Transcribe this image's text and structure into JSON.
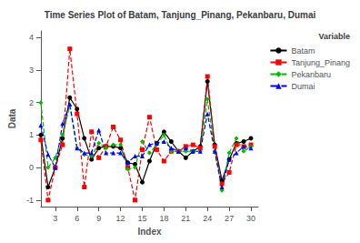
{
  "chart_data": {
    "type": "line",
    "title": "Time Series Plot of Batam, Tanjung_Pinang, Pekanbaru, Dumai",
    "xlabel": "Index",
    "ylabel": "Data",
    "legend_title": "Variable",
    "legend": "upper right",
    "grid": false,
    "x": [
      1,
      2,
      3,
      4,
      5,
      6,
      7,
      8,
      9,
      10,
      11,
      12,
      13,
      14,
      15,
      16,
      17,
      18,
      19,
      20,
      21,
      22,
      23,
      24,
      25,
      26,
      27,
      28,
      29,
      30
    ],
    "xlim": [
      1,
      31
    ],
    "xticks": [
      3,
      6,
      9,
      12,
      15,
      18,
      21,
      24,
      27,
      30
    ],
    "ylim": [
      -1.2,
      4.2
    ],
    "yticks": [
      -1,
      0,
      1,
      2,
      3,
      4
    ],
    "series": [
      {
        "name": "Batam",
        "color": "#000000",
        "marker": "circle",
        "line_style": "solid",
        "values": [
          1.0,
          -0.6,
          0.0,
          0.9,
          2.15,
          1.8,
          0.9,
          0.25,
          0.6,
          0.65,
          0.65,
          0.6,
          0.15,
          0.1,
          -0.45,
          0.2,
          0.75,
          1.1,
          0.8,
          0.5,
          0.3,
          0.5,
          0.65,
          2.65,
          0.7,
          -0.4,
          0.25,
          0.75,
          0.8,
          0.9
        ]
      },
      {
        "name": "Tanjung_Pinang",
        "color": "#ff0000",
        "marker": "square",
        "line_style": "dashed",
        "values": [
          0.85,
          -1.0,
          0.0,
          0.7,
          3.65,
          1.65,
          -0.6,
          1.1,
          0.3,
          0.65,
          1.25,
          0.85,
          0.0,
          -1.0,
          0.55,
          1.55,
          0.55,
          0.2,
          0.5,
          0.5,
          0.65,
          0.7,
          0.6,
          2.8,
          0.65,
          -0.5,
          -0.15,
          0.7,
          0.65,
          0.7
        ]
      },
      {
        "name": "Pekanbaru",
        "color": "#00bb00",
        "marker": "diamond",
        "line_style": "dashed",
        "values": [
          2.0,
          0.0,
          0.3,
          1.0,
          1.9,
          0.6,
          0.4,
          0.35,
          0.75,
          0.6,
          0.7,
          0.7,
          -0.05,
          0.0,
          0.8,
          0.45,
          0.7,
          1.0,
          0.5,
          0.5,
          0.5,
          0.5,
          0.5,
          2.1,
          0.5,
          -0.7,
          0.45,
          0.9,
          0.5,
          0.65
        ]
      },
      {
        "name": "Dumai",
        "color": "#0000ff",
        "marker": "triangle",
        "line_style": "dashed",
        "values": [
          1.3,
          0.4,
          0.0,
          1.35,
          1.95,
          0.6,
          0.45,
          0.45,
          1.15,
          0.45,
          0.45,
          0.45,
          0.15,
          0.35,
          0.35,
          0.7,
          0.75,
          0.8,
          0.6,
          0.5,
          0.6,
          0.5,
          0.5,
          1.65,
          0.5,
          -0.6,
          0.25,
          0.45,
          0.65,
          0.6
        ]
      }
    ]
  }
}
